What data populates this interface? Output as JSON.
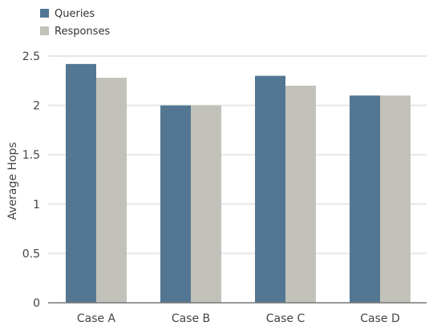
{
  "chart_data": {
    "type": "bar",
    "categories": [
      "Case A",
      "Case B",
      "Case C",
      "Case D"
    ],
    "series": [
      {
        "name": "Queries",
        "values": [
          2.42,
          2.0,
          2.3,
          2.1
        ],
        "color": "#537793"
      },
      {
        "name": "Responses",
        "values": [
          2.28,
          2.0,
          2.2,
          2.1
        ],
        "color": "#c2c2ba"
      }
    ],
    "title": "",
    "xlabel": "",
    "ylabel": "Average Hops",
    "ylim": [
      0,
      2.5
    ],
    "yticks": [
      0,
      0.5,
      1,
      1.5,
      2,
      2.5
    ],
    "ytick_labels": [
      "0",
      "0.5",
      "1",
      "1.5",
      "2",
      "2.5"
    ],
    "grid": true,
    "legend_position": "top-left",
    "axis_color": "#777777",
    "grid_color": "#e6e6e6"
  }
}
